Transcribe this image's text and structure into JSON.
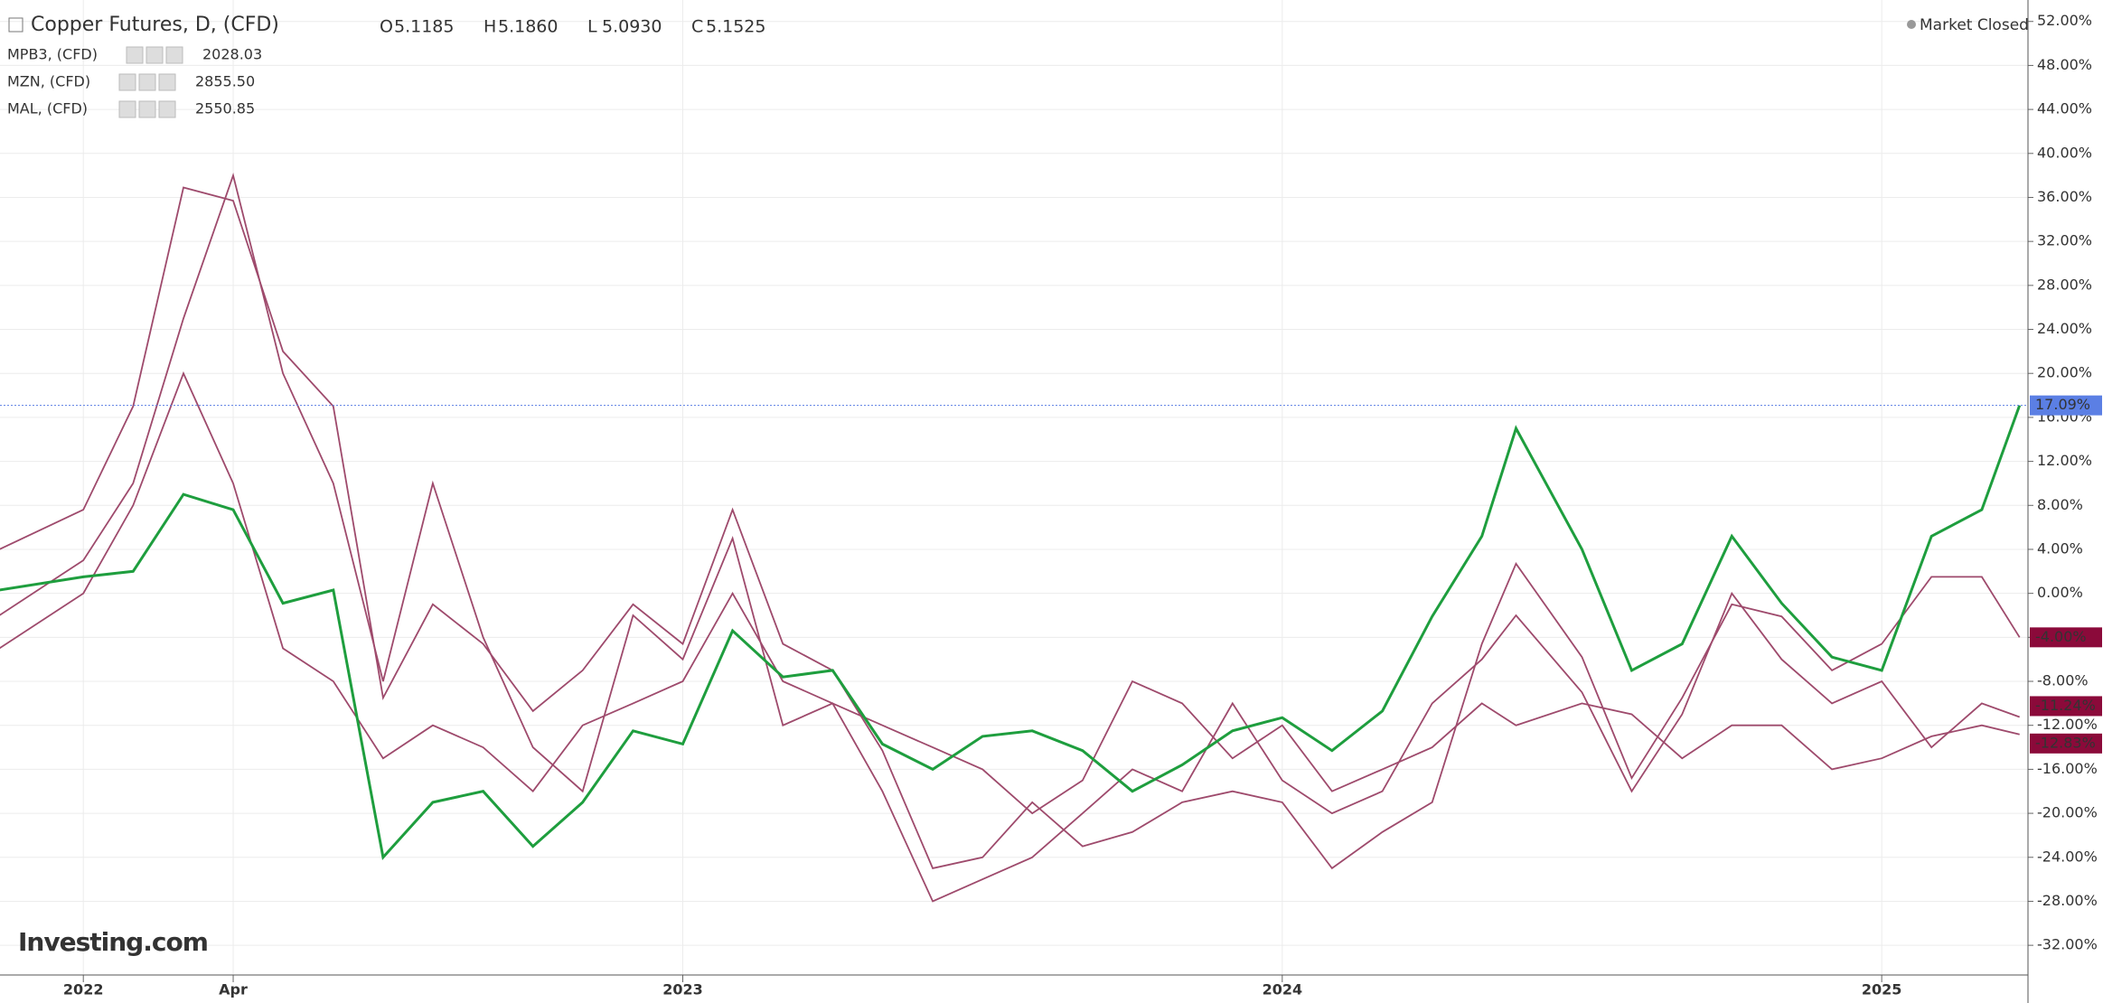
{
  "chart_data": {
    "type": "line",
    "status": "Market Closed",
    "logo": "Investing.com",
    "ohlc": [
      {
        "label": "O",
        "value": 5.1185
      },
      {
        "label": "H",
        "value": 5.186
      },
      {
        "label": "L",
        "value": 5.093
      },
      {
        "label": "C",
        "value": 5.1525
      }
    ],
    "ohlc_labels": [
      "5.1185",
      "5.1860",
      "5.0930",
      "5.1525"
    ],
    "x": [
      2021.86,
      2022.0,
      2022.083,
      2022.167,
      2022.25,
      2022.333,
      2022.417,
      2022.5,
      2022.583,
      2022.667,
      2022.75,
      2022.833,
      2022.917,
      2023.0,
      2023.083,
      2023.167,
      2023.25,
      2023.333,
      2023.417,
      2023.5,
      2023.583,
      2023.667,
      2023.75,
      2023.833,
      2023.917,
      2024.0,
      2024.083,
      2024.167,
      2024.25,
      2024.333,
      2024.39,
      2024.5,
      2024.583,
      2024.667,
      2024.75,
      2024.833,
      2024.917,
      2025.0,
      2025.083,
      2025.167,
      2025.23
    ],
    "xlim": [
      2021.861,
      2025.244
    ],
    "xticks": [
      2022,
      {
        "value": 2022.25,
        "label": "Apr"
      },
      2023,
      2024,
      2025
    ],
    "ylim": [
      -34.7,
      53.95
    ],
    "yticks": [
      {
        "value": -32,
        "label": "-32.00%"
      },
      {
        "value": -28,
        "label": "-28.00%"
      },
      {
        "value": -24,
        "label": "-24.00%"
      },
      {
        "value": -20,
        "label": "-20.00%"
      },
      {
        "value": -16,
        "label": "-16.00%"
      },
      {
        "value": -12,
        "label": "-12.00%"
      },
      {
        "value": -8,
        "label": "-8.00%"
      },
      {
        "value": -4,
        "label": "-4.00%"
      },
      {
        "value": 0,
        "label": "0.00%"
      },
      {
        "value": 4,
        "label": "4.00%"
      },
      {
        "value": 8,
        "label": "8.00%"
      },
      {
        "value": 12,
        "label": "12.00%"
      },
      {
        "value": 16,
        "label": "16.00%"
      },
      {
        "value": 20,
        "label": "20.00%"
      },
      {
        "value": 24,
        "label": "24.00%"
      },
      {
        "value": 28,
        "label": "28.00%"
      },
      {
        "value": 32,
        "label": "32.00%"
      },
      {
        "value": 36,
        "label": "36.00%"
      },
      {
        "value": 40,
        "label": "40.00%"
      },
      {
        "value": 44,
        "label": "44.00%"
      },
      {
        "value": 48,
        "label": "48.00%"
      },
      {
        "value": 52,
        "label": "52.00%"
      }
    ],
    "grid": true,
    "series": [
      {
        "name": "Copper Futures, D, (CFD)",
        "color": "#1e9e3e",
        "label_color": "#5b7fe4",
        "values": [
          0.3,
          1.5,
          2,
          9,
          7.6,
          -0.9,
          0.3,
          -24,
          -19,
          -18,
          -23,
          -19,
          -12.5,
          -13.7,
          -3.4,
          -7.6,
          -7,
          -13.7,
          -16,
          -13,
          -12.5,
          -14.3,
          -18,
          -15.6,
          -12.5,
          -11.3,
          -14.3,
          -10.7,
          -2.1,
          5.2,
          15,
          4,
          -7,
          -4.6,
          5.2,
          -0.9,
          -5.8,
          -7,
          5.2,
          7.6,
          17.09
        ],
        "value_labels": [
          null,
          null,
          null,
          null,
          null,
          null,
          null,
          null,
          null,
          null,
          null,
          null,
          null,
          null,
          null,
          null,
          null,
          null,
          null,
          null,
          null,
          null,
          null,
          null,
          null,
          null,
          null,
          null,
          null,
          null,
          null,
          null,
          null,
          null,
          null,
          null,
          null,
          null,
          null,
          null,
          "17.09%"
        ]
      },
      {
        "name": "MPB3, (CFD)",
        "quote": "2028.03",
        "color": "#9e4a6c",
        "label_color": "#8b0a3a",
        "values": [
          4,
          7.6,
          17,
          36.9,
          35.7,
          22,
          17,
          -9.5,
          -1,
          -4.6,
          -10.7,
          -7,
          -1,
          -4.6,
          7.6,
          -4.6,
          -7,
          -14.3,
          -25,
          -24,
          -19,
          -23,
          -21.7,
          -19,
          -18,
          -19,
          -25,
          -21.7,
          -19,
          -4.6,
          2.7,
          -5.8,
          -16.8,
          -9.5,
          -1,
          -2.1,
          -7,
          -4.6,
          1.5,
          1.5,
          -4
        ],
        "value_labels": [
          null,
          null,
          null,
          null,
          null,
          null,
          null,
          null,
          null,
          null,
          null,
          null,
          null,
          null,
          null,
          null,
          null,
          null,
          null,
          null,
          null,
          null,
          null,
          null,
          null,
          null,
          null,
          null,
          null,
          null,
          null,
          null,
          null,
          null,
          null,
          null,
          null,
          null,
          null,
          null,
          "-4.00%"
        ]
      },
      {
        "name": "MZN, (CFD)",
        "quote": "2855.50",
        "color": "#9e4a6c",
        "label_color": "#8b0a3a",
        "values": [
          -2,
          3,
          10,
          25,
          38,
          20,
          10,
          -8,
          10,
          -4,
          -14,
          -18,
          -2,
          -6,
          5,
          -12,
          -10,
          -18,
          -28,
          -26,
          -24,
          -20,
          -16,
          -18,
          -10,
          -17,
          -20,
          -18,
          -10,
          -6,
          -2,
          -9,
          -18,
          -11,
          0,
          -6,
          -10,
          -8,
          -14,
          -10,
          -11.24
        ],
        "value_labels": [
          null,
          null,
          null,
          null,
          null,
          null,
          null,
          null,
          null,
          null,
          null,
          null,
          null,
          null,
          null,
          null,
          null,
          null,
          null,
          null,
          null,
          null,
          null,
          null,
          null,
          null,
          null,
          null,
          null,
          null,
          null,
          null,
          null,
          null,
          null,
          null,
          null,
          null,
          null,
          null,
          "-11.24%"
        ]
      },
      {
        "name": "MAL, (CFD)",
        "quote": "2550.85",
        "color": "#9e4a6c",
        "label_color": "#8b0a3a",
        "values": [
          -5,
          0,
          8,
          20,
          10,
          -5,
          -8,
          -15,
          -12,
          -14,
          -18,
          -12,
          -10,
          -8,
          0,
          -8,
          -10,
          -12,
          -14,
          -16,
          -20,
          -17,
          -8,
          -10,
          -15,
          -12,
          -18,
          -16,
          -14,
          -10,
          -12,
          -10,
          -11,
          -15,
          -12,
          -12,
          -16,
          -15,
          -13,
          -12,
          -12.83
        ],
        "value_labels": [
          null,
          null,
          null,
          null,
          null,
          null,
          null,
          null,
          null,
          null,
          null,
          null,
          null,
          null,
          null,
          null,
          null,
          null,
          null,
          null,
          null,
          null,
          null,
          null,
          null,
          null,
          null,
          null,
          null,
          null,
          null,
          null,
          null,
          null,
          null,
          null,
          null,
          null,
          null,
          null,
          "-12.83%"
        ]
      }
    ]
  }
}
